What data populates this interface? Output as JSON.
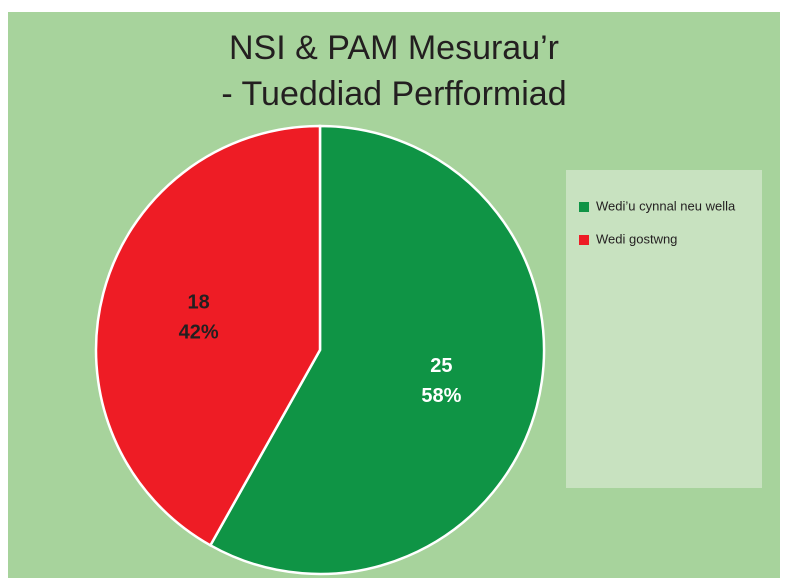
{
  "chart_data": {
    "type": "pie",
    "title": [
      "NSI & PAM Mesurau’r",
      "- Tueddiad Perfformiad"
    ],
    "categories": [
      "Wedi’u cynnal neu wella",
      "Wedi gostwng"
    ],
    "values": [
      25,
      18
    ],
    "percentages": [
      58,
      42
    ],
    "percentage_labels": [
      "58%",
      "42%"
    ],
    "colors": [
      "#0f9445",
      "#ee1c25"
    ],
    "label_colors": [
      "#ffffff",
      "#231f20"
    ],
    "legend": "right"
  }
}
